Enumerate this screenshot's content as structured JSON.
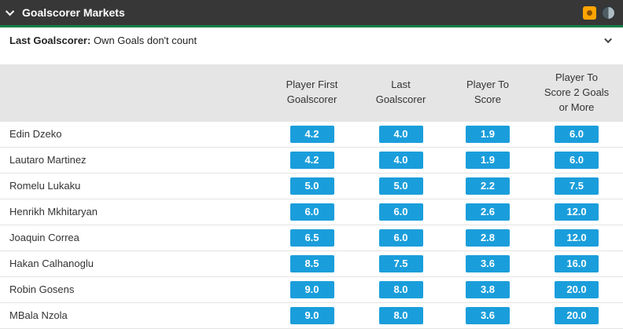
{
  "header": {
    "title": "Goalscorer Markets"
  },
  "subheader": {
    "bold": "Last Goalscorer:",
    "rest": " Own Goals don't count"
  },
  "table": {
    "columns": [
      "Player First\nGoalscorer",
      "Last\nGoalscorer",
      "Player To\nScore",
      "Player To\nScore 2 Goals\nor More"
    ],
    "rows": [
      {
        "player": "Edin Dzeko",
        "odds": [
          "4.2",
          "4.0",
          "1.9",
          "6.0"
        ]
      },
      {
        "player": "Lautaro Martinez",
        "odds": [
          "4.2",
          "4.0",
          "1.9",
          "6.0"
        ]
      },
      {
        "player": "Romelu Lukaku",
        "odds": [
          "5.0",
          "5.0",
          "2.2",
          "7.5"
        ]
      },
      {
        "player": "Henrikh Mkhitaryan",
        "odds": [
          "6.0",
          "6.0",
          "2.6",
          "12.0"
        ]
      },
      {
        "player": "Joaquin Correa",
        "odds": [
          "6.5",
          "6.0",
          "2.8",
          "12.0"
        ]
      },
      {
        "player": "Hakan Calhanoglu",
        "odds": [
          "8.5",
          "7.5",
          "3.6",
          "16.0"
        ]
      },
      {
        "player": "Robin Gosens",
        "odds": [
          "9.0",
          "8.0",
          "3.8",
          "20.0"
        ]
      },
      {
        "player": "MBala Nzola",
        "odds": [
          "9.0",
          "8.0",
          "3.6",
          "20.0"
        ]
      }
    ]
  },
  "icons": {
    "collapse": "chevron-down-icon",
    "highlight": "orange-square-icon",
    "clock": "clock-icon"
  },
  "colors": {
    "topbar_bg": "#373737",
    "accent_green": "#0a7d44",
    "odds_blue": "#1a9edb",
    "icon_orange": "#ffa400",
    "header_gray": "#e5e5e5"
  }
}
